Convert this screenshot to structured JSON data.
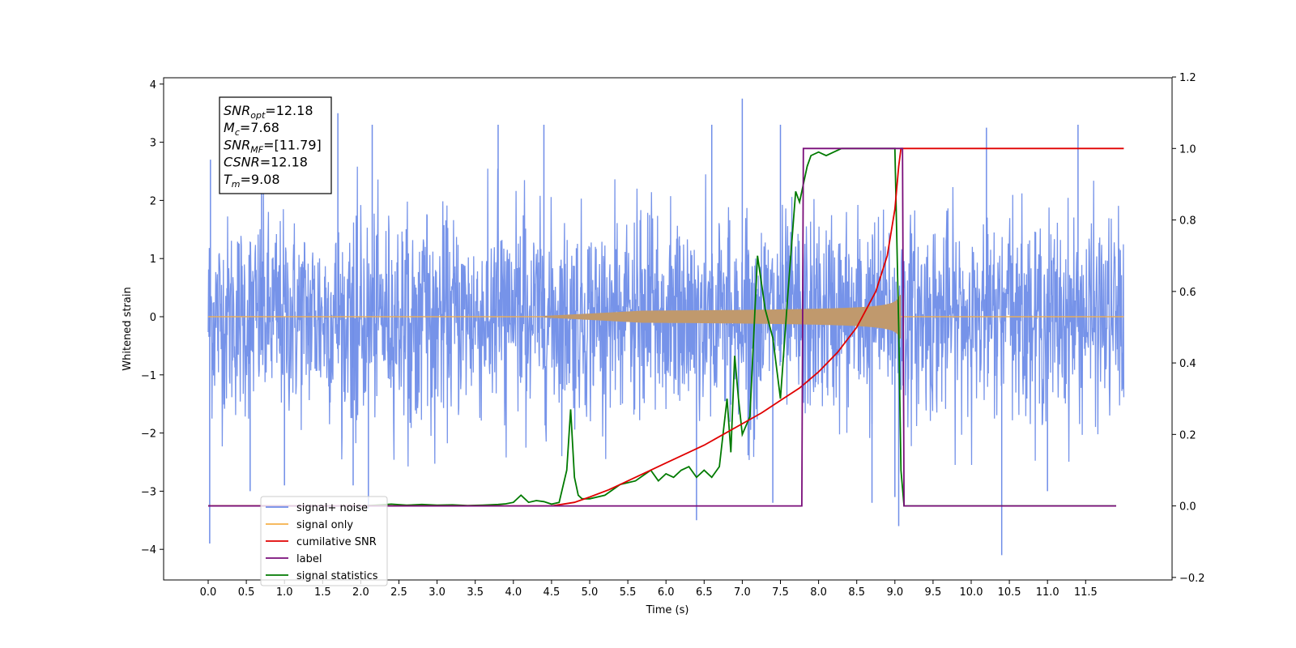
{
  "chart_data": {
    "type": "line",
    "xlabel": "Time (s)",
    "ylabel": "Whitened strain",
    "xlim": [
      -0.6,
      12.6
    ],
    "ylim_left": [
      -4.5,
      4.1
    ],
    "ylim_right": [
      -0.2,
      1.2
    ],
    "x_ticks": [
      "0.0",
      "0.5",
      "1.0",
      "1.5",
      "2.0",
      "2.5",
      "3.0",
      "3.5",
      "4.0",
      "4.5",
      "5.0",
      "5.5",
      "6.0",
      "6.5",
      "7.0",
      "7.5",
      "8.0",
      "8.5",
      "9.0",
      "9.5",
      "10.0",
      "10.5",
      "11.0",
      "11.5"
    ],
    "y_ticks_left": [
      "−4",
      "−3",
      "−2",
      "−1",
      "0",
      "1",
      "2",
      "3",
      "4"
    ],
    "y_ticks_right": [
      "−0.2",
      "0.0",
      "0.2",
      "0.4",
      "0.6",
      "0.8",
      "1.0",
      "1.2"
    ],
    "grid": false,
    "legend_position": "lower-left",
    "annotation": [
      {
        "base": "SNR",
        "sub": "opt",
        "value": "=12.18"
      },
      {
        "base": "M",
        "sub": "c",
        "value": "=7.68"
      },
      {
        "base": "SNR",
        "sub": "MF",
        "value": "=[11.79]"
      },
      {
        "base": "CSNR",
        "sub": "",
        "value": "=12.18"
      },
      {
        "base": "T",
        "sub": "m",
        "value": "=9.08"
      }
    ],
    "series": [
      {
        "name": "signal+ noise",
        "axis": "left",
        "color": "#6f8de8",
        "t_range": [
          0,
          12
        ],
        "noise_std": 0.85,
        "spikes": [
          [
            0.02,
            -3.9
          ],
          [
            0.03,
            2.7
          ],
          [
            0.55,
            -3.0
          ],
          [
            0.7,
            3.0
          ],
          [
            1.0,
            -2.9
          ],
          [
            1.7,
            3.5
          ],
          [
            1.9,
            -2.9
          ],
          [
            2.1,
            -3.3
          ],
          [
            2.15,
            3.3
          ],
          [
            3.8,
            3.3
          ],
          [
            4.4,
            3.3
          ],
          [
            6.4,
            -3.5
          ],
          [
            6.6,
            3.3
          ],
          [
            7.0,
            3.75
          ],
          [
            7.4,
            -3.2
          ],
          [
            7.5,
            3.3
          ],
          [
            8.7,
            -3.2
          ],
          [
            9.0,
            -3.1
          ],
          [
            9.05,
            -3.6
          ],
          [
            10.2,
            3.25
          ],
          [
            10.4,
            -4.1
          ],
          [
            11.0,
            -3.0
          ],
          [
            11.4,
            3.3
          ]
        ]
      },
      {
        "name": "signal only",
        "axis": "left",
        "color": "#f5b14a",
        "fill_color": "#c0996d",
        "start": 4.4,
        "merger": 9.08,
        "peak": 0.75
      },
      {
        "name": "cumilative SNR",
        "axis": "right",
        "color": "#e00000",
        "x": [
          0,
          4.5,
          4.8,
          5,
          5.25,
          5.5,
          5.75,
          6,
          6.25,
          6.5,
          6.75,
          7,
          7.25,
          7.5,
          7.75,
          8,
          8.25,
          8.5,
          8.75,
          8.9,
          9,
          9.05,
          9.08,
          12
        ],
        "y": [
          0,
          0,
          0.01,
          0.025,
          0.045,
          0.07,
          0.095,
          0.12,
          0.145,
          0.17,
          0.2,
          0.23,
          0.26,
          0.295,
          0.33,
          0.375,
          0.43,
          0.5,
          0.6,
          0.7,
          0.83,
          0.95,
          1.0,
          1.0
        ]
      },
      {
        "name": "label",
        "axis": "right",
        "color": "#7a0d7a",
        "x": [
          0,
          7.78,
          7.8,
          9.1,
          9.12,
          11.9
        ],
        "y": [
          0,
          0,
          1,
          1,
          0,
          0
        ]
      },
      {
        "name": "signal statistics",
        "axis": "right",
        "color": "#007a00",
        "x": [
          0,
          2,
          2.2,
          2.4,
          2.6,
          2.8,
          3,
          3.2,
          3.4,
          3.6,
          3.8,
          3.9,
          4,
          4.1,
          4.2,
          4.3,
          4.4,
          4.5,
          4.6,
          4.7,
          4.75,
          4.8,
          4.85,
          4.9,
          5,
          5.2,
          5.4,
          5.6,
          5.8,
          5.9,
          6,
          6.1,
          6.2,
          6.3,
          6.4,
          6.5,
          6.6,
          6.7,
          6.8,
          6.85,
          6.9,
          6.95,
          7,
          7.1,
          7.2,
          7.3,
          7.4,
          7.5,
          7.6,
          7.7,
          7.75,
          7.8,
          7.85,
          7.9,
          8,
          8.1,
          8.2,
          8.3,
          8.5,
          8.7,
          9,
          9.05,
          9.08,
          9.12,
          11.9
        ],
        "y": [
          0,
          0,
          0.002,
          0.005,
          0.002,
          0.004,
          0.002,
          0.003,
          0.001,
          0.002,
          0.004,
          0.006,
          0.01,
          0.03,
          0.01,
          0.015,
          0.012,
          0.005,
          0.01,
          0.1,
          0.27,
          0.08,
          0.03,
          0.02,
          0.02,
          0.03,
          0.06,
          0.07,
          0.1,
          0.07,
          0.09,
          0.08,
          0.1,
          0.11,
          0.08,
          0.1,
          0.08,
          0.11,
          0.3,
          0.15,
          0.42,
          0.3,
          0.2,
          0.25,
          0.7,
          0.55,
          0.47,
          0.3,
          0.6,
          0.88,
          0.85,
          0.9,
          0.95,
          0.98,
          0.99,
          0.98,
          0.99,
          1.0,
          1.0,
          1.0,
          1.0,
          0.5,
          0.1,
          0,
          0
        ]
      }
    ]
  }
}
